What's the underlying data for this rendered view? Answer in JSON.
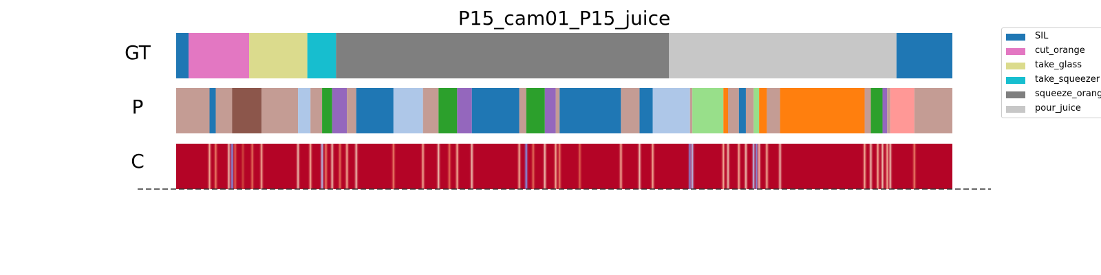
{
  "chart_data": {
    "type": "heatmap",
    "title": "P15_cam01_P15_juice",
    "x_range": [
      0,
      1
    ],
    "rows": [
      {
        "label": "GT",
        "segments": [
          {
            "start": 0.0,
            "end": 0.016,
            "color": "#1f77b4"
          },
          {
            "start": 0.016,
            "end": 0.094,
            "color": "#e377c2"
          },
          {
            "start": 0.094,
            "end": 0.169,
            "color": "#dbdb8d"
          },
          {
            "start": 0.169,
            "end": 0.206,
            "color": "#17becf"
          },
          {
            "start": 0.206,
            "end": 0.635,
            "color": "#7f7f7f"
          },
          {
            "start": 0.635,
            "end": 0.928,
            "color": "#c7c7c7"
          },
          {
            "start": 0.928,
            "end": 1.0,
            "color": "#1f77b4"
          }
        ]
      },
      {
        "label": "P",
        "segments": [
          {
            "start": 0.0,
            "end": 0.043,
            "color": "#c49c94"
          },
          {
            "start": 0.043,
            "end": 0.051,
            "color": "#1f77b4"
          },
          {
            "start": 0.051,
            "end": 0.072,
            "color": "#c49c94"
          },
          {
            "start": 0.072,
            "end": 0.11,
            "color": "#8c564b"
          },
          {
            "start": 0.11,
            "end": 0.157,
            "color": "#c49c94"
          },
          {
            "start": 0.157,
            "end": 0.173,
            "color": "#aec7e8"
          },
          {
            "start": 0.173,
            "end": 0.188,
            "color": "#c49c94"
          },
          {
            "start": 0.188,
            "end": 0.201,
            "color": "#2ca02c"
          },
          {
            "start": 0.201,
            "end": 0.22,
            "color": "#9467bd"
          },
          {
            "start": 0.22,
            "end": 0.232,
            "color": "#c49c94"
          },
          {
            "start": 0.232,
            "end": 0.28,
            "color": "#1f77b4"
          },
          {
            "start": 0.28,
            "end": 0.318,
            "color": "#aec7e8"
          },
          {
            "start": 0.318,
            "end": 0.338,
            "color": "#c49c94"
          },
          {
            "start": 0.338,
            "end": 0.362,
            "color": "#2ca02c"
          },
          {
            "start": 0.362,
            "end": 0.381,
            "color": "#9467bd"
          },
          {
            "start": 0.381,
            "end": 0.442,
            "color": "#1f77b4"
          },
          {
            "start": 0.442,
            "end": 0.451,
            "color": "#c49c94"
          },
          {
            "start": 0.451,
            "end": 0.475,
            "color": "#2ca02c"
          },
          {
            "start": 0.475,
            "end": 0.489,
            "color": "#9467bd"
          },
          {
            "start": 0.489,
            "end": 0.494,
            "color": "#c49c94"
          },
          {
            "start": 0.494,
            "end": 0.573,
            "color": "#1f77b4"
          },
          {
            "start": 0.573,
            "end": 0.597,
            "color": "#c49c94"
          },
          {
            "start": 0.597,
            "end": 0.614,
            "color": "#1f77b4"
          },
          {
            "start": 0.614,
            "end": 0.662,
            "color": "#aec7e8"
          },
          {
            "start": 0.662,
            "end": 0.665,
            "color": "#c49c94"
          },
          {
            "start": 0.665,
            "end": 0.705,
            "color": "#98df8a"
          },
          {
            "start": 0.705,
            "end": 0.711,
            "color": "#ff7f0e"
          },
          {
            "start": 0.711,
            "end": 0.725,
            "color": "#c49c94"
          },
          {
            "start": 0.725,
            "end": 0.734,
            "color": "#1f77b4"
          },
          {
            "start": 0.734,
            "end": 0.744,
            "color": "#c49c94"
          },
          {
            "start": 0.744,
            "end": 0.751,
            "color": "#98df8a"
          },
          {
            "start": 0.751,
            "end": 0.761,
            "color": "#ff7f0e"
          },
          {
            "start": 0.761,
            "end": 0.778,
            "color": "#c49c94"
          },
          {
            "start": 0.778,
            "end": 0.887,
            "color": "#ff7f0e"
          },
          {
            "start": 0.887,
            "end": 0.895,
            "color": "#c49c94"
          },
          {
            "start": 0.895,
            "end": 0.91,
            "color": "#2ca02c"
          },
          {
            "start": 0.91,
            "end": 0.916,
            "color": "#9467bd"
          },
          {
            "start": 0.916,
            "end": 0.92,
            "color": "#c49c94"
          },
          {
            "start": 0.92,
            "end": 0.951,
            "color": "#ff9896"
          },
          {
            "start": 0.951,
            "end": 1.0,
            "color": "#c49c94"
          }
        ]
      },
      {
        "label": "C",
        "base_color": "#b40426",
        "marks": [
          {
            "pos": 0.043,
            "color": "#f7b89c"
          },
          {
            "pos": 0.051,
            "color": "#ee8468"
          },
          {
            "pos": 0.068,
            "color": "#f2cbb7"
          },
          {
            "pos": 0.072,
            "color": "#7b9ff9"
          },
          {
            "pos": 0.076,
            "color": "#e26952"
          },
          {
            "pos": 0.086,
            "color": "#d24b40"
          },
          {
            "pos": 0.098,
            "color": "#e8765c"
          },
          {
            "pos": 0.11,
            "color": "#f7b89c"
          },
          {
            "pos": 0.157,
            "color": "#f2cbb7"
          },
          {
            "pos": 0.173,
            "color": "#f7b89c"
          },
          {
            "pos": 0.188,
            "color": "#b6cefa"
          },
          {
            "pos": 0.193,
            "color": "#ee8468"
          },
          {
            "pos": 0.201,
            "color": "#f2cbb7"
          },
          {
            "pos": 0.211,
            "color": "#e8765c"
          },
          {
            "pos": 0.22,
            "color": "#f7b89c"
          },
          {
            "pos": 0.232,
            "color": "#f2cbb7"
          },
          {
            "pos": 0.28,
            "color": "#ee8468"
          },
          {
            "pos": 0.318,
            "color": "#f7b89c"
          },
          {
            "pos": 0.338,
            "color": "#f2cbb7"
          },
          {
            "pos": 0.352,
            "color": "#e8765c"
          },
          {
            "pos": 0.362,
            "color": "#f7b89c"
          },
          {
            "pos": 0.381,
            "color": "#f2cbb7"
          },
          {
            "pos": 0.442,
            "color": "#f7b89c"
          },
          {
            "pos": 0.451,
            "color": "#7b9ff9"
          },
          {
            "pos": 0.46,
            "color": "#e8765c"
          },
          {
            "pos": 0.475,
            "color": "#f2cbb7"
          },
          {
            "pos": 0.489,
            "color": "#f7b89c"
          },
          {
            "pos": 0.494,
            "color": "#ee8468"
          },
          {
            "pos": 0.52,
            "color": "#e26952"
          },
          {
            "pos": 0.573,
            "color": "#f7b89c"
          },
          {
            "pos": 0.597,
            "color": "#f2cbb7"
          },
          {
            "pos": 0.614,
            "color": "#f7b89c"
          },
          {
            "pos": 0.662,
            "color": "#7b9ff9"
          },
          {
            "pos": 0.665,
            "color": "#b6cefa"
          },
          {
            "pos": 0.705,
            "color": "#f7b89c"
          },
          {
            "pos": 0.711,
            "color": "#f2cbb7"
          },
          {
            "pos": 0.725,
            "color": "#f7b89c"
          },
          {
            "pos": 0.734,
            "color": "#f2cbb7"
          },
          {
            "pos": 0.744,
            "color": "#b6cefa"
          },
          {
            "pos": 0.748,
            "color": "#7b9ff9"
          },
          {
            "pos": 0.751,
            "color": "#f2cbb7"
          },
          {
            "pos": 0.761,
            "color": "#f7b89c"
          },
          {
            "pos": 0.778,
            "color": "#f2cbb7"
          },
          {
            "pos": 0.887,
            "color": "#f7b89c"
          },
          {
            "pos": 0.895,
            "color": "#f2cbb7"
          },
          {
            "pos": 0.904,
            "color": "#f7b89c"
          },
          {
            "pos": 0.91,
            "color": "#f2cbb7"
          },
          {
            "pos": 0.916,
            "color": "#f7b89c"
          },
          {
            "pos": 0.92,
            "color": "#f2cbb7"
          },
          {
            "pos": 0.951,
            "color": "#ee8468"
          }
        ]
      }
    ],
    "legend": {
      "placement": "top-right",
      "entries": [
        {
          "label": "SIL",
          "color": "#1f77b4"
        },
        {
          "label": "cut_orange",
          "color": "#e377c2"
        },
        {
          "label": "take_glass",
          "color": "#dbdb8d"
        },
        {
          "label": "take_squeezer",
          "color": "#17becf"
        },
        {
          "label": "squeeze_orange",
          "color": "#7f7f7f"
        },
        {
          "label": "pour_juice",
          "color": "#c7c7c7"
        }
      ]
    },
    "baseline": {
      "style": "dashed",
      "color": "#333333"
    }
  }
}
